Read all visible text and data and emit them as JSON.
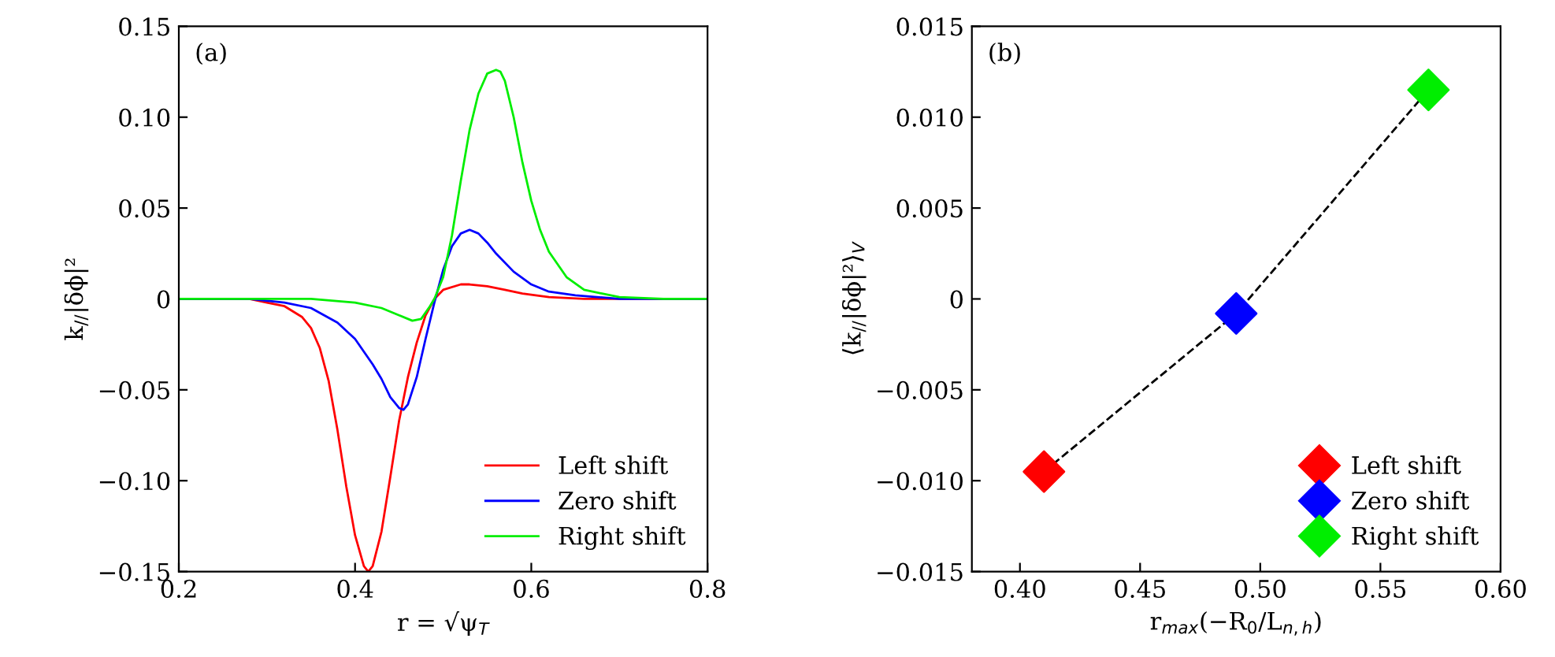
{
  "chart_data": [
    {
      "type": "line",
      "xlabel": "r = √ψ$_{T}$",
      "ylabel": "k$_{//}$|δϕ|²",
      "annotations": [
        "(a)"
      ],
      "legend": "bottom right",
      "grid": false,
      "marker": "none",
      "line_style": "solid",
      "xlim": [
        0.2,
        0.8
      ],
      "xticks": [
        {
          "value": 0.2,
          "label": "0.2"
        },
        {
          "value": 0.4,
          "label": "0.4"
        },
        {
          "value": 0.6,
          "label": "0.6"
        },
        {
          "value": 0.8,
          "label": "0.8"
        }
      ],
      "ylim": [
        -0.15,
        0.15
      ],
      "yticks": [
        {
          "value": -0.15,
          "label": "−0.15"
        },
        {
          "value": -0.1,
          "label": "−0.10"
        },
        {
          "value": -0.05,
          "label": "−0.05"
        },
        {
          "value": 0,
          "label": "0"
        },
        {
          "value": 0.05,
          "label": "0.05"
        },
        {
          "value": 0.1,
          "label": "0.10"
        },
        {
          "value": 0.15,
          "label": "0.15"
        }
      ],
      "series": [
        {
          "name": "Left shift",
          "color": "#ff0000",
          "x": [
            0.2,
            0.25,
            0.28,
            0.3,
            0.32,
            0.34,
            0.35,
            0.36,
            0.37,
            0.38,
            0.39,
            0.4,
            0.41,
            0.415,
            0.42,
            0.43,
            0.44,
            0.45,
            0.46,
            0.47,
            0.48,
            0.49,
            0.5,
            0.52,
            0.53,
            0.55,
            0.57,
            0.59,
            0.62,
            0.66,
            0.7,
            0.8
          ],
          "values": [
            0,
            0,
            0,
            -0.002,
            -0.004,
            -0.01,
            -0.016,
            -0.027,
            -0.045,
            -0.072,
            -0.103,
            -0.13,
            -0.147,
            -0.15,
            -0.147,
            -0.128,
            -0.098,
            -0.067,
            -0.043,
            -0.024,
            -0.009,
            0,
            0.005,
            0.008,
            0.008,
            0.007,
            0.005,
            0.003,
            0.001,
            0,
            0,
            0
          ]
        },
        {
          "name": "Zero shift",
          "color": "#0000ff",
          "x": [
            0.2,
            0.28,
            0.32,
            0.35,
            0.38,
            0.4,
            0.42,
            0.43,
            0.44,
            0.45,
            0.455,
            0.46,
            0.47,
            0.48,
            0.49,
            0.5,
            0.51,
            0.52,
            0.53,
            0.54,
            0.55,
            0.56,
            0.58,
            0.6,
            0.62,
            0.65,
            0.7,
            0.8
          ],
          "values": [
            0,
            0,
            -0.002,
            -0.005,
            -0.013,
            -0.022,
            -0.036,
            -0.044,
            -0.054,
            -0.06,
            -0.061,
            -0.058,
            -0.043,
            -0.022,
            -0.002,
            0.016,
            0.029,
            0.036,
            0.038,
            0.036,
            0.031,
            0.025,
            0.015,
            0.008,
            0.004,
            0.002,
            0,
            0
          ]
        },
        {
          "name": "Right shift",
          "color": "#00ee00",
          "x": [
            0.2,
            0.35,
            0.4,
            0.43,
            0.45,
            0.465,
            0.475,
            0.485,
            0.49,
            0.5,
            0.51,
            0.52,
            0.53,
            0.54,
            0.55,
            0.56,
            0.565,
            0.57,
            0.58,
            0.59,
            0.6,
            0.61,
            0.62,
            0.64,
            0.66,
            0.7,
            0.75,
            0.8
          ],
          "values": [
            0,
            0,
            -0.002,
            -0.005,
            -0.009,
            -0.012,
            -0.011,
            -0.004,
            0,
            0.012,
            0.035,
            0.065,
            0.093,
            0.113,
            0.124,
            0.126,
            0.125,
            0.12,
            0.1,
            0.075,
            0.054,
            0.038,
            0.026,
            0.012,
            0.005,
            0.001,
            0,
            0
          ]
        }
      ]
    },
    {
      "type": "scatter",
      "xlabel": "r$_{max}$(−R$_{0}$/L$_{n,h}$)",
      "ylabel": "⟨k$_{//}$|δϕ|²⟩$_{V}$",
      "annotations": [
        "(b)"
      ],
      "legend": "bottom right",
      "grid": false,
      "xlim": [
        0.38,
        0.6
      ],
      "xticks": [
        {
          "value": 0.4,
          "label": "0.40"
        },
        {
          "value": 0.45,
          "label": "0.45"
        },
        {
          "value": 0.5,
          "label": "0.50"
        },
        {
          "value": 0.55,
          "label": "0.55"
        },
        {
          "value": 0.6,
          "label": "0.60"
        }
      ],
      "ylim": [
        -0.015,
        0.015
      ],
      "yticks": [
        {
          "value": -0.015,
          "label": "−0.015"
        },
        {
          "value": -0.01,
          "label": "−0.010"
        },
        {
          "value": -0.005,
          "label": "−0.005"
        },
        {
          "value": 0,
          "label": "0"
        },
        {
          "value": 0.005,
          "label": "0.005"
        },
        {
          "value": 0.01,
          "label": "0.010"
        },
        {
          "value": 0.015,
          "label": "0.015"
        }
      ],
      "series": [
        {
          "type": "line",
          "color": "#000000",
          "line_style": "dashed",
          "x": [
            0.41,
            0.49,
            0.57
          ],
          "values": [
            -0.0095,
            -0.0008,
            0.0115
          ]
        },
        {
          "name": "Left shift",
          "color": "#ff0000",
          "marker": "diamond",
          "x": [
            0.41
          ],
          "values": [
            -0.0095
          ]
        },
        {
          "name": "Zero shift",
          "color": "#0000ff",
          "marker": "diamond",
          "x": [
            0.49
          ],
          "values": [
            -0.0008
          ]
        },
        {
          "name": "Right shift",
          "color": "#00ee00",
          "marker": "diamond",
          "x": [
            0.57
          ],
          "values": [
            0.0115
          ]
        }
      ]
    }
  ]
}
